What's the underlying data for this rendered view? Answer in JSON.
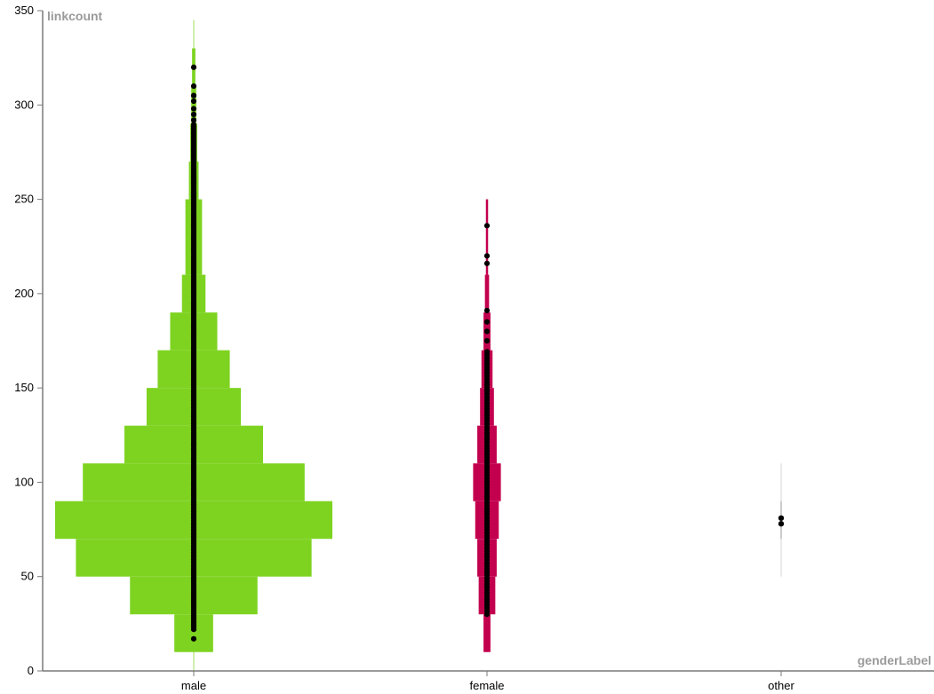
{
  "chart_data": {
    "type": "violin-histogram",
    "ylabel": "linkcount",
    "xlabel": "genderLabel",
    "ylim": [
      0,
      350
    ],
    "yticks": [
      0,
      50,
      100,
      150,
      200,
      250,
      300,
      350
    ],
    "categories": [
      "male",
      "female",
      "other"
    ],
    "colors": {
      "male": "#7ed321",
      "female": "#c3004e",
      "other": "#c8c8c8",
      "point": "#000000"
    },
    "groups": [
      {
        "name": "male",
        "whisker": [
          0,
          345
        ],
        "bins": [
          {
            "y0": 10,
            "y1": 30,
            "width": 0.14
          },
          {
            "y0": 30,
            "y1": 50,
            "width": 0.46
          },
          {
            "y0": 50,
            "y1": 70,
            "width": 0.85
          },
          {
            "y0": 70,
            "y1": 90,
            "width": 1.0
          },
          {
            "y0": 90,
            "y1": 110,
            "width": 0.8
          },
          {
            "y0": 110,
            "y1": 130,
            "width": 0.5
          },
          {
            "y0": 130,
            "y1": 150,
            "width": 0.34
          },
          {
            "y0": 150,
            "y1": 170,
            "width": 0.26
          },
          {
            "y0": 170,
            "y1": 190,
            "width": 0.17
          },
          {
            "y0": 190,
            "y1": 210,
            "width": 0.085
          },
          {
            "y0": 210,
            "y1": 250,
            "width": 0.06
          },
          {
            "y0": 250,
            "y1": 270,
            "width": 0.035
          },
          {
            "y0": 270,
            "y1": 290,
            "width": 0.025
          },
          {
            "y0": 290,
            "y1": 310,
            "width": 0.018
          },
          {
            "y0": 310,
            "y1": 330,
            "width": 0.012
          }
        ],
        "points_range": [
          22,
          290
        ],
        "points_extra": [
          17,
          292,
          295,
          298,
          302,
          305,
          310,
          320
        ]
      },
      {
        "name": "female",
        "whisker": [
          10,
          250
        ],
        "bins": [
          {
            "y0": 10,
            "y1": 30,
            "width": 0.025
          },
          {
            "y0": 30,
            "y1": 50,
            "width": 0.06
          },
          {
            "y0": 50,
            "y1": 70,
            "width": 0.07
          },
          {
            "y0": 70,
            "y1": 90,
            "width": 0.085
          },
          {
            "y0": 90,
            "y1": 110,
            "width": 0.1
          },
          {
            "y0": 110,
            "y1": 130,
            "width": 0.07
          },
          {
            "y0": 130,
            "y1": 150,
            "width": 0.05
          },
          {
            "y0": 150,
            "y1": 170,
            "width": 0.04
          },
          {
            "y0": 170,
            "y1": 190,
            "width": 0.025
          },
          {
            "y0": 190,
            "y1": 210,
            "width": 0.015
          },
          {
            "y0": 210,
            "y1": 250,
            "width": 0.008
          }
        ],
        "points_range": [
          30,
          170
        ],
        "points_extra": [
          175,
          180,
          185,
          191,
          216,
          220,
          236
        ]
      },
      {
        "name": "other",
        "whisker": [
          50,
          110
        ],
        "bins": [
          {
            "y0": 70,
            "y1": 90,
            "width": 0.006
          }
        ],
        "points_range": [
          78,
          81
        ],
        "points_extra": [
          78,
          81
        ]
      }
    ]
  }
}
